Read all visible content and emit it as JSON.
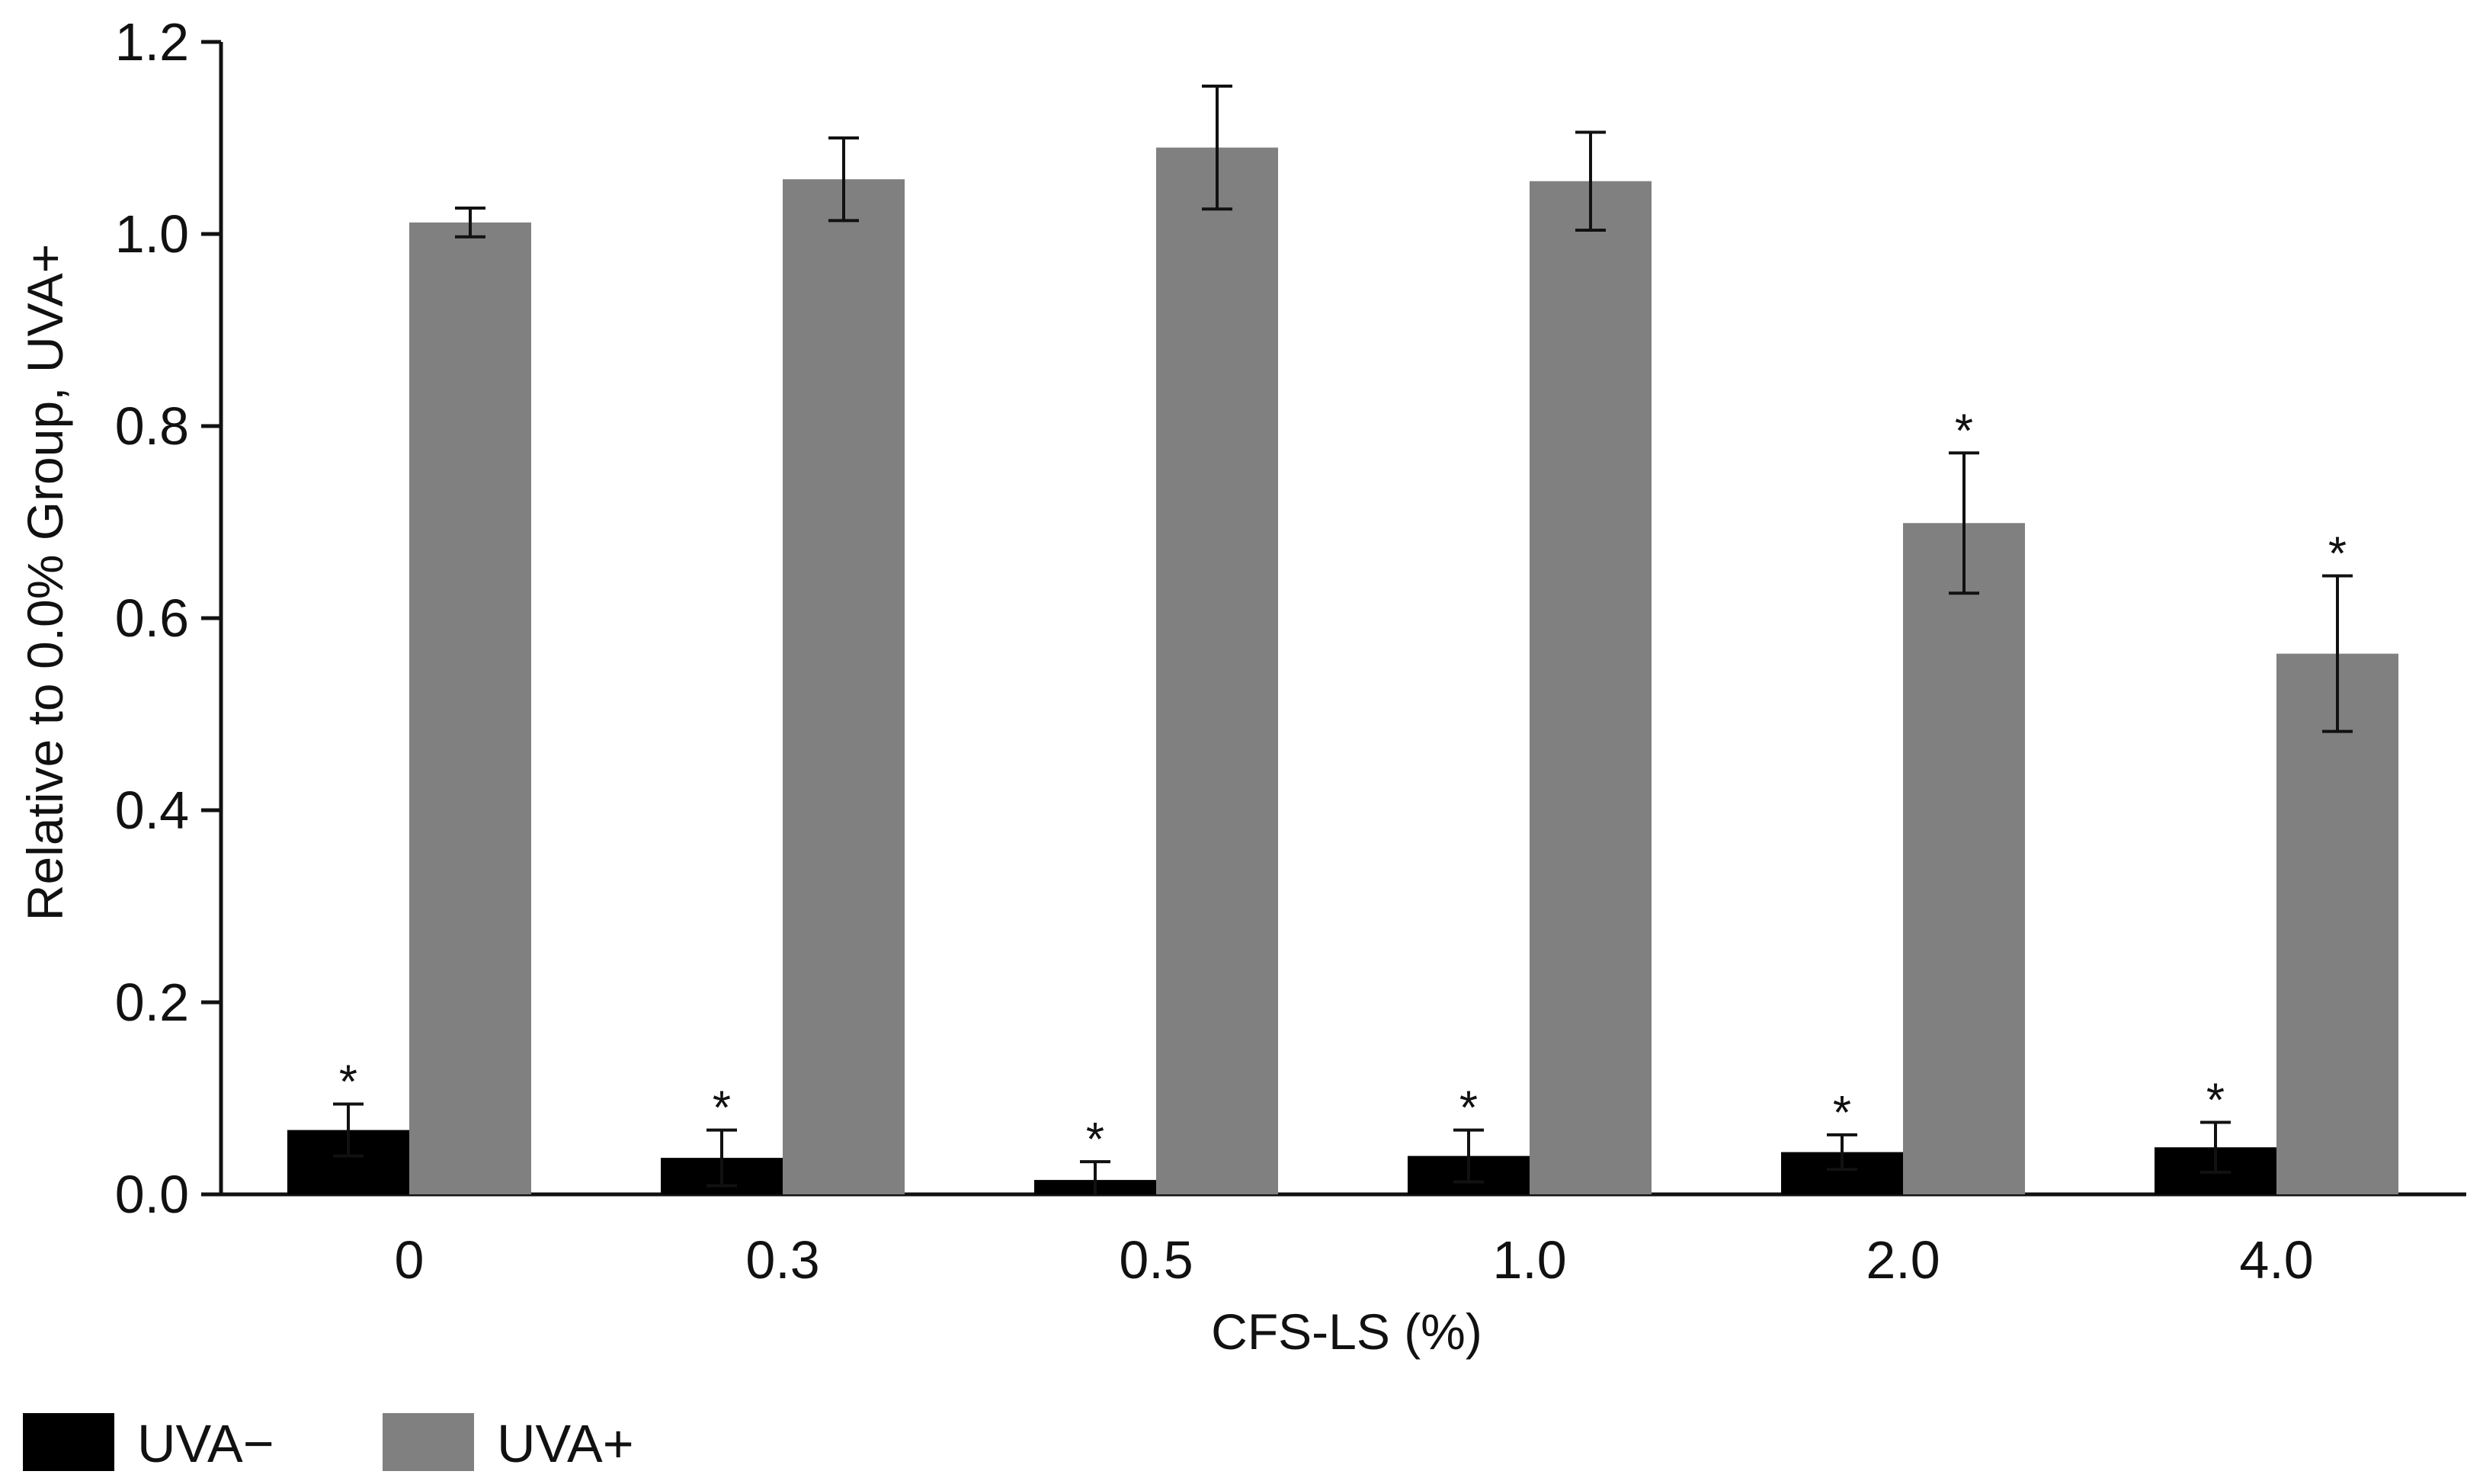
{
  "chart_data": {
    "type": "bar",
    "title": "",
    "xlabel": "CFS-LS (%)",
    "ylabel": "Relative to 0.0% Group, UVA+",
    "categories": [
      "0",
      "0.3",
      "0.5",
      "1.0",
      "2.0",
      "4.0"
    ],
    "ylim": [
      0,
      1.2
    ],
    "yticks": [
      "0.0",
      "0.2",
      "0.4",
      "0.6",
      "0.8",
      "1.0",
      "1.2"
    ],
    "grid": false,
    "legend_position": "bottom-left",
    "series": [
      {
        "name": "UVA−",
        "color": "#000000",
        "values": [
          0.067,
          0.038,
          0.015,
          0.04,
          0.044,
          0.049
        ],
        "errors": [
          0.027,
          0.029,
          0.019,
          0.027,
          0.018,
          0.026
        ],
        "markers": [
          "*",
          "*",
          "*",
          "*",
          "*",
          "*"
        ]
      },
      {
        "name": "UVA+",
        "color": "#808080",
        "values": [
          1.012,
          1.057,
          1.09,
          1.055,
          0.699,
          0.563
        ],
        "errors": [
          0.015,
          0.043,
          0.064,
          0.051,
          0.073,
          0.081
        ],
        "markers": [
          "",
          "",
          "",
          "",
          "*",
          "*"
        ]
      }
    ]
  }
}
